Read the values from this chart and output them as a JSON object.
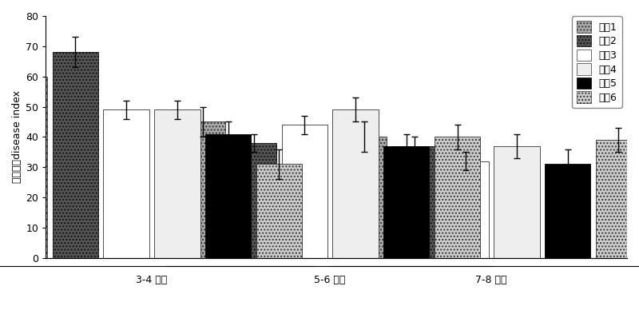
{
  "groups": [
    "3-4 叶期",
    "5-6 叶期",
    "7-8 叶期"
  ],
  "series_labels": [
    "材枙1",
    "材枙2",
    "材枙3",
    "材枙4",
    "材枙5",
    "材枙6"
  ],
  "values": [
    [
      60,
      68,
      49,
      49,
      41,
      31
    ],
    [
      45,
      38,
      44,
      49,
      37,
      40
    ],
    [
      40,
      37,
      32,
      37,
      31,
      39
    ]
  ],
  "errors": [
    [
      4,
      5,
      3,
      3,
      4,
      5
    ],
    [
      5,
      3,
      3,
      4,
      4,
      4
    ],
    [
      5,
      3,
      3,
      4,
      5,
      4
    ]
  ],
  "ylim": [
    0,
    80
  ],
  "yticks": [
    0,
    10,
    20,
    30,
    40,
    50,
    60,
    70,
    80
  ],
  "ylabel": "病情指数disease index",
  "background_color": "#ffffff",
  "bar_width": 0.12
}
